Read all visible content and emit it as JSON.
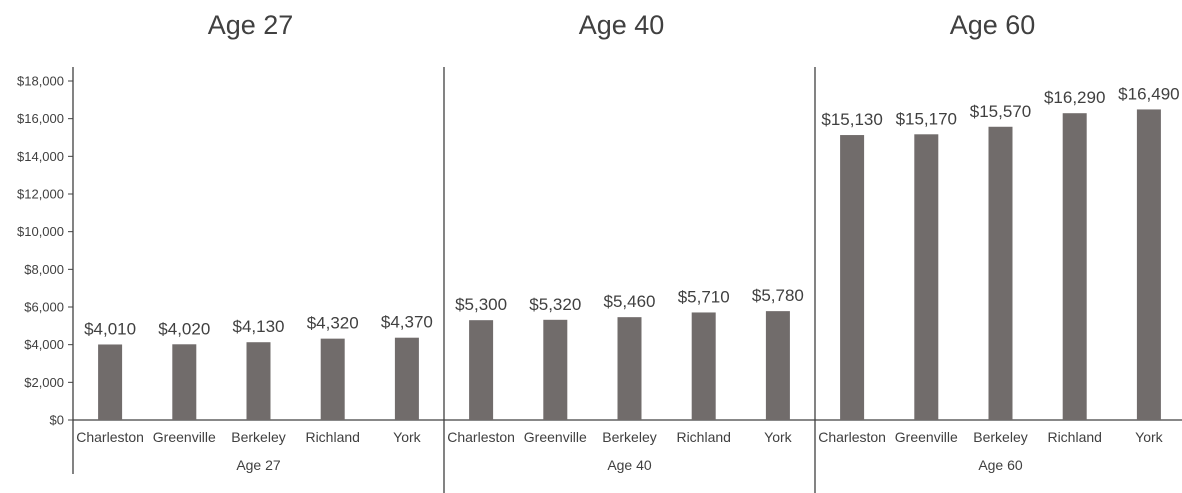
{
  "chart_data": {
    "type": "bar",
    "groups": [
      {
        "title": "Age 27",
        "axis_label": "Age 27",
        "categories": [
          "Charleston",
          "Greenville",
          "Berkeley",
          "Richland",
          "York"
        ],
        "values": [
          4010,
          4020,
          4130,
          4320,
          4370
        ],
        "data_labels": [
          "$4,010",
          "$4,020",
          "$4,130",
          "$4,320",
          "$4,370"
        ]
      },
      {
        "title": "Age 40",
        "axis_label": "Age 40",
        "categories": [
          "Charleston",
          "Greenville",
          "Berkeley",
          "Richland",
          "York"
        ],
        "values": [
          5300,
          5320,
          5460,
          5710,
          5780
        ],
        "data_labels": [
          "$5,300",
          "$5,320",
          "$5,460",
          "$5,710",
          "$5,780"
        ]
      },
      {
        "title": "Age 60",
        "axis_label": "Age 60",
        "categories": [
          "Charleston",
          "Greenville",
          "Berkeley",
          "Richland",
          "York"
        ],
        "values": [
          15130,
          15170,
          15570,
          16290,
          16490
        ],
        "data_labels": [
          "$15,130",
          "$15,170",
          "$15,570",
          "$16,290",
          "$16,490"
        ]
      }
    ],
    "y_ticks": [
      "$0",
      "$2,000",
      "$4,000",
      "$6,000",
      "$8,000",
      "$10,000",
      "$12,000",
      "$14,000",
      "$16,000",
      "$18,000"
    ],
    "ylim": [
      0,
      18000
    ],
    "grid": false,
    "legend": "none",
    "bar_color": "#716c6b",
    "text_color": "#404040"
  }
}
